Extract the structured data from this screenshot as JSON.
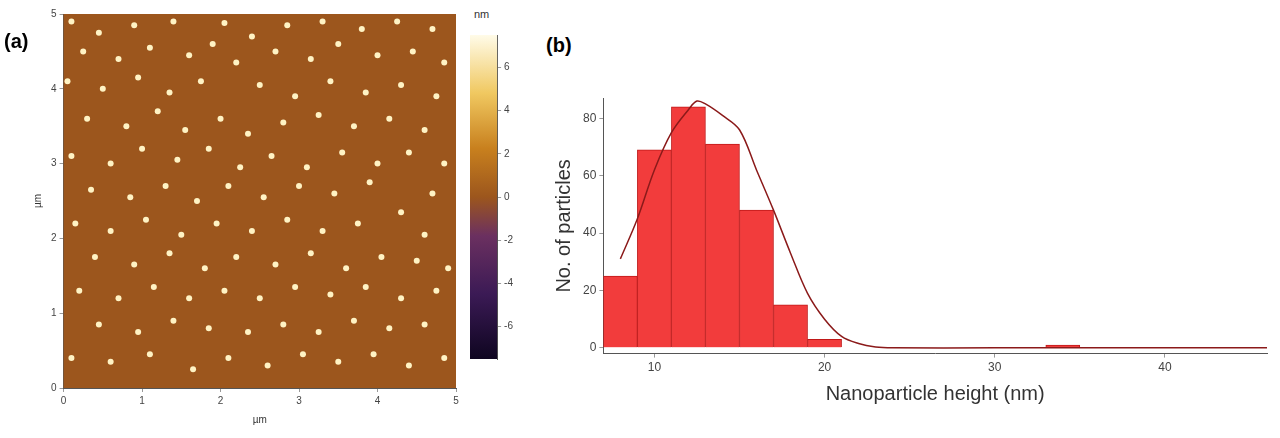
{
  "chart_data": [
    {
      "panel_label": "(a)",
      "type": "scatter",
      "x_label": "µm",
      "y_label": "µm",
      "xlim": [
        0,
        5
      ],
      "ylim": [
        0,
        5
      ],
      "xticks": [
        0,
        1,
        2,
        3,
        4,
        5
      ],
      "yticks": [
        0,
        1,
        2,
        3,
        4,
        5
      ],
      "grid": false,
      "marker": "circle",
      "color": "#fff3c4",
      "points": [
        [
          0.1,
          4.9
        ],
        [
          0.45,
          4.75
        ],
        [
          0.9,
          4.85
        ],
        [
          1.4,
          4.9
        ],
        [
          2.05,
          4.88
        ],
        [
          2.4,
          4.7
        ],
        [
          2.85,
          4.85
        ],
        [
          3.3,
          4.9
        ],
        [
          3.8,
          4.8
        ],
        [
          4.25,
          4.9
        ],
        [
          4.7,
          4.8
        ],
        [
          0.25,
          4.5
        ],
        [
          0.7,
          4.4
        ],
        [
          1.1,
          4.55
        ],
        [
          1.6,
          4.45
        ],
        [
          1.9,
          4.6
        ],
        [
          2.2,
          4.35
        ],
        [
          2.7,
          4.5
        ],
        [
          3.15,
          4.4
        ],
        [
          3.5,
          4.6
        ],
        [
          4.0,
          4.45
        ],
        [
          4.45,
          4.5
        ],
        [
          4.85,
          4.35
        ],
        [
          0.05,
          4.1
        ],
        [
          0.5,
          4.0
        ],
        [
          0.95,
          4.15
        ],
        [
          1.35,
          3.95
        ],
        [
          1.75,
          4.1
        ],
        [
          2.5,
          4.05
        ],
        [
          2.95,
          3.9
        ],
        [
          3.4,
          4.1
        ],
        [
          3.85,
          3.95
        ],
        [
          4.3,
          4.05
        ],
        [
          4.75,
          3.9
        ],
        [
          0.3,
          3.6
        ],
        [
          0.8,
          3.5
        ],
        [
          1.2,
          3.7
        ],
        [
          1.55,
          3.45
        ],
        [
          2.0,
          3.6
        ],
        [
          2.35,
          3.4
        ],
        [
          2.8,
          3.55
        ],
        [
          3.25,
          3.65
        ],
        [
          3.7,
          3.5
        ],
        [
          4.15,
          3.6
        ],
        [
          4.6,
          3.45
        ],
        [
          0.1,
          3.1
        ],
        [
          0.6,
          3.0
        ],
        [
          1.0,
          3.2
        ],
        [
          1.45,
          3.05
        ],
        [
          1.85,
          3.2
        ],
        [
          2.25,
          2.95
        ],
        [
          2.65,
          3.1
        ],
        [
          3.1,
          2.95
        ],
        [
          3.55,
          3.15
        ],
        [
          4.0,
          3.0
        ],
        [
          4.4,
          3.15
        ],
        [
          4.85,
          3.0
        ],
        [
          0.35,
          2.65
        ],
        [
          0.85,
          2.55
        ],
        [
          1.3,
          2.7
        ],
        [
          1.7,
          2.5
        ],
        [
          2.1,
          2.7
        ],
        [
          2.55,
          2.55
        ],
        [
          3.0,
          2.7
        ],
        [
          3.45,
          2.6
        ],
        [
          3.9,
          2.75
        ],
        [
          4.3,
          2.35
        ],
        [
          4.7,
          2.6
        ],
        [
          0.15,
          2.2
        ],
        [
          0.6,
          2.1
        ],
        [
          1.05,
          2.25
        ],
        [
          1.5,
          2.05
        ],
        [
          1.95,
          2.2
        ],
        [
          2.4,
          2.1
        ],
        [
          2.85,
          2.25
        ],
        [
          3.3,
          2.1
        ],
        [
          3.75,
          2.2
        ],
        [
          4.6,
          2.05
        ],
        [
          0.4,
          1.75
        ],
        [
          0.9,
          1.65
        ],
        [
          1.35,
          1.8
        ],
        [
          1.8,
          1.6
        ],
        [
          2.2,
          1.75
        ],
        [
          2.7,
          1.65
        ],
        [
          3.15,
          1.8
        ],
        [
          3.6,
          1.6
        ],
        [
          4.05,
          1.75
        ],
        [
          4.5,
          1.7
        ],
        [
          4.9,
          1.6
        ],
        [
          0.2,
          1.3
        ],
        [
          0.7,
          1.2
        ],
        [
          1.15,
          1.35
        ],
        [
          1.6,
          1.2
        ],
        [
          2.05,
          1.3
        ],
        [
          2.5,
          1.2
        ],
        [
          2.95,
          1.35
        ],
        [
          3.4,
          1.25
        ],
        [
          3.85,
          1.35
        ],
        [
          4.3,
          1.2
        ],
        [
          4.75,
          1.3
        ],
        [
          0.45,
          0.85
        ],
        [
          0.95,
          0.75
        ],
        [
          1.4,
          0.9
        ],
        [
          1.85,
          0.8
        ],
        [
          2.35,
          0.75
        ],
        [
          2.8,
          0.85
        ],
        [
          3.25,
          0.75
        ],
        [
          3.7,
          0.9
        ],
        [
          4.15,
          0.8
        ],
        [
          4.6,
          0.85
        ],
        [
          0.1,
          0.4
        ],
        [
          0.6,
          0.35
        ],
        [
          1.1,
          0.45
        ],
        [
          1.65,
          0.25
        ],
        [
          2.1,
          0.4
        ],
        [
          2.6,
          0.3
        ],
        [
          3.05,
          0.45
        ],
        [
          3.5,
          0.35
        ],
        [
          3.95,
          0.45
        ],
        [
          4.4,
          0.3
        ],
        [
          4.85,
          0.4
        ]
      ],
      "colorbar": {
        "label": "nm",
        "range": [
          -7.5,
          7.5
        ],
        "ticks": [
          -6,
          -4,
          -2,
          0,
          2,
          4,
          6
        ]
      }
    },
    {
      "panel_label": "(b)",
      "type": "histogram",
      "x_label": "Nanoparticle height (nm)",
      "y_label": "No. of particles",
      "bins": [
        7,
        9,
        11,
        13,
        15,
        17,
        19,
        21,
        23,
        25,
        27,
        29,
        31,
        33,
        35,
        37,
        39,
        41,
        43,
        45
      ],
      "counts": [
        25,
        69,
        84,
        71,
        48,
        15,
        3,
        0,
        0,
        0,
        0,
        0,
        0,
        1,
        0,
        0,
        0,
        0,
        0
      ],
      "color": "#f23c3c",
      "fit": {
        "x": [
          8,
          9,
          10,
          11,
          12,
          12.5,
          13,
          14,
          15,
          16,
          17,
          18,
          19,
          20,
          21,
          22,
          23,
          24,
          30,
          35,
          40,
          46
        ],
        "y": [
          31,
          45,
          62,
          75,
          83,
          86,
          85,
          81,
          76,
          62,
          48,
          33,
          19,
          10,
          4,
          1.5,
          0.3,
          0,
          0,
          0,
          0,
          0
        ],
        "color": "#8b1a1a",
        "line_style": "solid"
      },
      "xlim": [
        7,
        46
      ],
      "ylim": [
        -2,
        87
      ],
      "xticks": [
        10,
        20,
        30,
        40
      ],
      "yticks": [
        0,
        20,
        40,
        60,
        80
      ],
      "grid": false
    }
  ]
}
